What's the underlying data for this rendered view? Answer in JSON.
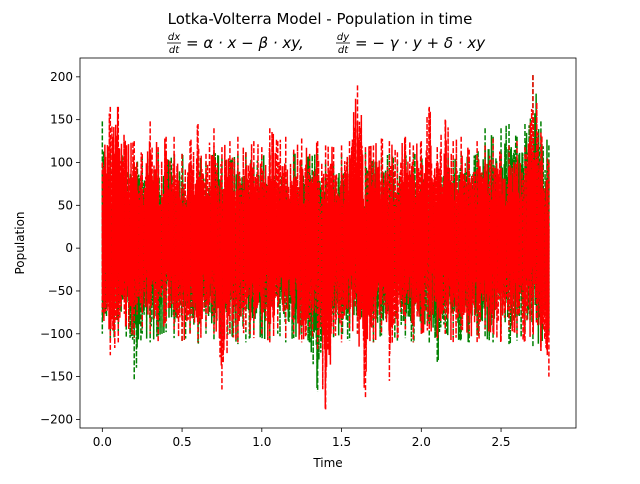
{
  "chart_data": {
    "type": "line",
    "title": "Lotka-Volterra Model - Population in time",
    "subtitle": {
      "eq1_lhs_num": "dx",
      "eq1_lhs_den": "dt",
      "eq1_rhs": "= α · x − β · xy,",
      "eq2_lhs_num": "dy",
      "eq2_lhs_den": "dt",
      "eq2_rhs": "= − γ · y + δ · xy"
    },
    "xlabel": "Time",
    "ylabel": "Population",
    "xlim": [
      -0.14,
      2.97
    ],
    "ylim": [
      -210,
      222
    ],
    "xticks": [
      0.0,
      0.5,
      1.0,
      1.5,
      2.0,
      2.5
    ],
    "xtick_labels": [
      "0.0",
      "0.5",
      "1.0",
      "1.5",
      "2.0",
      "2.5"
    ],
    "yticks": [
      -200,
      -150,
      -100,
      -50,
      0,
      50,
      100,
      150,
      200
    ],
    "ytick_labels": [
      "−200",
      "−150",
      "−100",
      "−50",
      "0",
      "50",
      "100",
      "150",
      "200"
    ],
    "grid": false,
    "series": [
      {
        "color": "#008000",
        "linestyle": "dashed",
        "x": [
          0.0,
          0.05,
          0.1,
          0.15,
          0.2,
          0.25,
          0.3,
          0.35,
          0.4,
          0.45,
          0.5,
          0.55,
          0.6,
          0.65,
          0.7,
          0.75,
          0.8,
          0.85,
          0.9,
          0.95,
          1.0,
          1.05,
          1.1,
          1.15,
          1.2,
          1.25,
          1.3,
          1.35,
          1.4,
          1.45,
          1.5,
          1.55,
          1.6,
          1.65,
          1.7,
          1.75,
          1.8,
          1.85,
          1.9,
          1.95,
          2.0,
          2.05,
          2.1,
          2.15,
          2.2,
          2.25,
          2.3,
          2.35,
          2.4,
          2.45,
          2.5,
          2.55,
          2.6,
          2.65,
          2.7,
          2.75,
          2.8
        ],
        "upper": [
          148,
          110,
          102,
          115,
          98,
          108,
          105,
          112,
          100,
          110,
          110,
          95,
          108,
          100,
          112,
          105,
          102,
          110,
          112,
          98,
          108,
          110,
          100,
          105,
          112,
          102,
          108,
          110,
          100,
          98,
          110,
          105,
          108,
          112,
          100,
          105,
          110,
          102,
          108,
          112,
          105,
          100,
          110,
          108,
          102,
          112,
          105,
          110,
          140,
          130,
          140,
          145,
          130,
          145,
          202,
          148,
          120
        ],
        "lower": [
          -100,
          -110,
          -98,
          -105,
          -155,
          -100,
          -110,
          -102,
          -98,
          -105,
          -110,
          -100,
          -112,
          -100,
          -108,
          -105,
          -100,
          -112,
          -110,
          -100,
          -105,
          -108,
          -100,
          -110,
          -105,
          -100,
          -110,
          -168,
          -100,
          -105,
          -100,
          -108,
          -100,
          -105,
          -110,
          -102,
          -100,
          -108,
          -105,
          -110,
          -100,
          -112,
          -135,
          -100,
          -105,
          -108,
          -110,
          -102,
          -105,
          -110,
          -100,
          -112,
          -108,
          -100,
          -115,
          -110,
          -100
        ]
      },
      {
        "color": "#ff0000",
        "linestyle": "dashed",
        "x": [
          0.0,
          0.05,
          0.1,
          0.15,
          0.2,
          0.25,
          0.3,
          0.35,
          0.4,
          0.45,
          0.5,
          0.55,
          0.6,
          0.65,
          0.7,
          0.75,
          0.8,
          0.85,
          0.9,
          0.95,
          1.0,
          1.05,
          1.1,
          1.15,
          1.2,
          1.25,
          1.3,
          1.35,
          1.4,
          1.45,
          1.5,
          1.55,
          1.6,
          1.65,
          1.7,
          1.75,
          1.8,
          1.85,
          1.9,
          1.95,
          2.0,
          2.05,
          2.1,
          2.15,
          2.2,
          2.25,
          2.3,
          2.35,
          2.4,
          2.45,
          2.5,
          2.55,
          2.6,
          2.65,
          2.7,
          2.75,
          2.8
        ],
        "upper": [
          100,
          165,
          165,
          120,
          125,
          110,
          148,
          118,
          130,
          130,
          110,
          125,
          145,
          110,
          140,
          118,
          125,
          130,
          112,
          125,
          118,
          140,
          125,
          130,
          115,
          128,
          110,
          125,
          120,
          118,
          120,
          125,
          190,
          118,
          120,
          128,
          125,
          112,
          130,
          120,
          125,
          165,
          118,
          150,
          125,
          130,
          115,
          125,
          120,
          128,
          110,
          120,
          125,
          118,
          202,
          135,
          100
        ],
        "lower": [
          -75,
          -125,
          -110,
          -90,
          -105,
          -95,
          -100,
          -110,
          -85,
          -95,
          -110,
          -100,
          -110,
          -95,
          -100,
          -165,
          -100,
          -110,
          -95,
          -105,
          -100,
          -110,
          -95,
          -105,
          -100,
          -110,
          -95,
          -120,
          -190,
          -100,
          -110,
          -95,
          -100,
          -175,
          -110,
          -100,
          -155,
          -105,
          -95,
          -110,
          -100,
          -95,
          -105,
          -100,
          -110,
          -95,
          -100,
          -110,
          -95,
          -100,
          -110,
          -95,
          -100,
          -110,
          -100,
          -120,
          -150
        ]
      }
    ]
  }
}
